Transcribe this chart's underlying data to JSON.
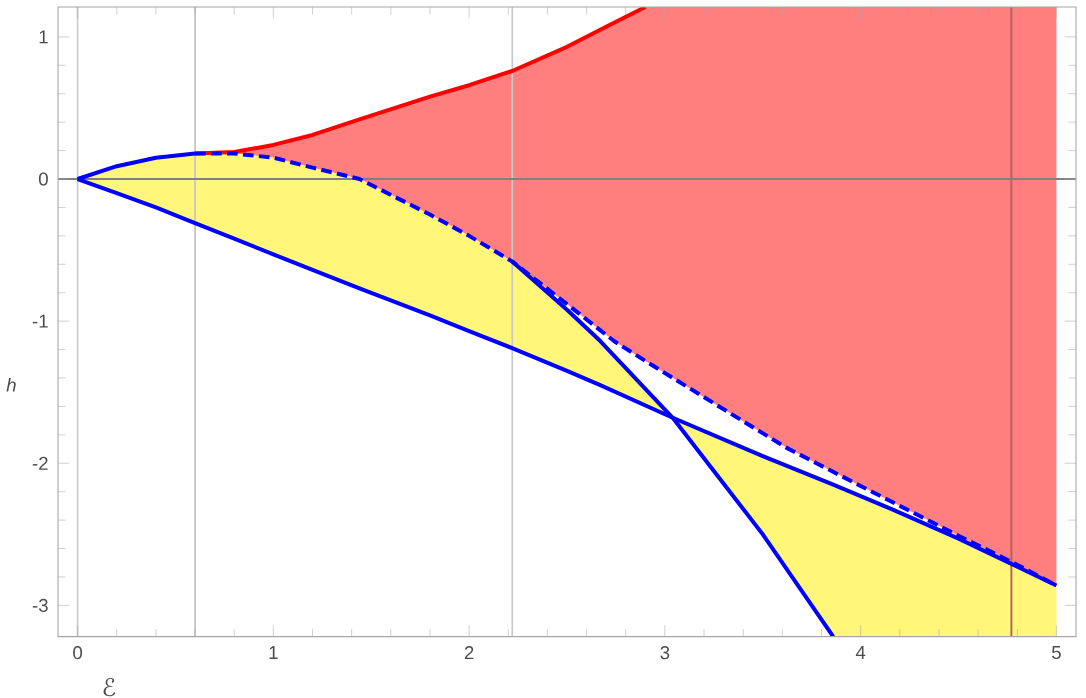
{
  "chart_data": {
    "type": "line",
    "xlabel": "ℰ",
    "ylabel": "h",
    "xlim": [
      -0.1,
      5.1
    ],
    "ylim": [
      -3.22,
      1.21
    ],
    "xticks": [
      0,
      1,
      2,
      3,
      4,
      5
    ],
    "yticks": [
      -3,
      -2,
      -1,
      0,
      1
    ],
    "marker": "none",
    "series": [
      {
        "color": "#ff7f7f",
        "x": [
          0.6,
          0.8,
          1.0,
          1.2,
          1.44,
          1.8,
          2.0,
          2.22,
          2.5,
          2.74,
          2.9,
          3.3,
          3.62,
          4.0,
          4.3,
          4.5,
          4.78,
          5.0
        ],
        "values": [
          null,
          null,
          null,
          null,
          null,
          null,
          null,
          null,
          null,
          null,
          null,
          null,
          null,
          null,
          null,
          null,
          null,
          null
        ],
        "upper": [
          0.18,
          0.19,
          0.24,
          0.31,
          0.42,
          0.58,
          0.66,
          0.76,
          0.93,
          1.1,
          1.21,
          1.21,
          1.21,
          1.21,
          1.21,
          1.21,
          1.21,
          1.21
        ],
        "lower": [
          0.18,
          0.18,
          0.15,
          0.08,
          0,
          -0.25,
          -0.4,
          -0.58,
          -0.88,
          -1.14,
          -1.28,
          -1.62,
          -1.89,
          -2.16,
          -2.37,
          -2.51,
          -2.7,
          -2.86
        ]
      },
      {
        "color": "#fff67a",
        "x": [
          0,
          0.2,
          0.4,
          0.6,
          0.8,
          1.0,
          1.2,
          1.44,
          1.8,
          2.0,
          2.22,
          2.5,
          2.67,
          3.04,
          3.5,
          3.86,
          5.0
        ],
        "values": [
          null,
          null,
          null,
          null,
          null,
          null,
          null,
          null,
          null,
          null,
          null,
          null,
          null,
          null,
          null,
          null,
          null
        ],
        "upper": [
          0,
          0.09,
          0.15,
          0.18,
          0.18,
          0.15,
          0.08,
          0,
          -0.25,
          -0.4,
          -0.58,
          -0.92,
          -1.14,
          -1.68,
          -1.95,
          -2.15,
          -2.86
        ],
        "lower": [
          0,
          -0.1,
          -0.2,
          -0.31,
          -0.42,
          -0.53,
          -0.64,
          -0.77,
          -0.96,
          -1.07,
          -1.19,
          -1.35,
          -1.45,
          -1.68,
          -2.5,
          -3.22,
          -3.22
        ]
      },
      {
        "color": "#ff0000",
        "line_style": "solid",
        "x": [
          0.6,
          0.8,
          1.0,
          1.2,
          1.44,
          1.8,
          2.0,
          2.22,
          2.5,
          2.74,
          2.9
        ],
        "values": [
          0.18,
          0.19,
          0.24,
          0.31,
          0.42,
          0.58,
          0.66,
          0.76,
          0.93,
          1.1,
          1.21
        ]
      },
      {
        "color": "#0000ff",
        "line_style": "solid",
        "x": [
          0,
          0.2,
          0.4,
          0.6
        ],
        "values": [
          0,
          0.09,
          0.15,
          0.18
        ]
      },
      {
        "color": "#0000ff",
        "line_style": "dashed",
        "x": [
          0.6,
          0.8,
          1.0,
          1.2,
          1.44,
          1.8,
          2.0,
          2.22,
          2.5,
          2.74,
          2.9,
          3.3,
          3.62,
          4.0,
          4.3,
          4.5,
          4.78,
          5.0
        ],
        "values": [
          0.18,
          0.18,
          0.15,
          0.08,
          0,
          -0.25,
          -0.4,
          -0.58,
          -0.88,
          -1.14,
          -1.28,
          -1.62,
          -1.89,
          -2.16,
          -2.37,
          -2.51,
          -2.7,
          -2.86
        ]
      },
      {
        "color": "#0000ff",
        "line_style": "solid",
        "x": [
          2.22,
          2.5,
          2.67,
          3.04,
          3.5,
          3.86
        ],
        "values": [
          -0.58,
          -0.92,
          -1.14,
          -1.68,
          -2.5,
          -3.22
        ]
      },
      {
        "color": "#0000ff",
        "line_style": "solid",
        "x": [
          0,
          0.2,
          0.4,
          0.6,
          0.8,
          1.0,
          1.2,
          1.44,
          1.8,
          2.0,
          2.22,
          2.5,
          2.67,
          3.04,
          3.5,
          3.86,
          4.17,
          4.5,
          5.0
        ],
        "values": [
          0,
          -0.1,
          -0.2,
          -0.31,
          -0.42,
          -0.53,
          -0.64,
          -0.77,
          -0.96,
          -1.07,
          -1.19,
          -1.35,
          -1.45,
          -1.68,
          -1.95,
          -2.15,
          -2.33,
          -2.53,
          -2.86
        ]
      }
    ],
    "ref_lines": [
      {
        "axis": "x",
        "value": 0,
        "color": "#d0d0d0"
      },
      {
        "axis": "x",
        "value": 0.6,
        "color": "#c8c8c8"
      },
      {
        "axis": "x",
        "value": 2.22,
        "color": "#c8c8c8"
      },
      {
        "axis": "x",
        "value": 4.77,
        "color": "#b06060"
      },
      {
        "axis": "y",
        "value": 0,
        "color": "#808080"
      }
    ]
  }
}
